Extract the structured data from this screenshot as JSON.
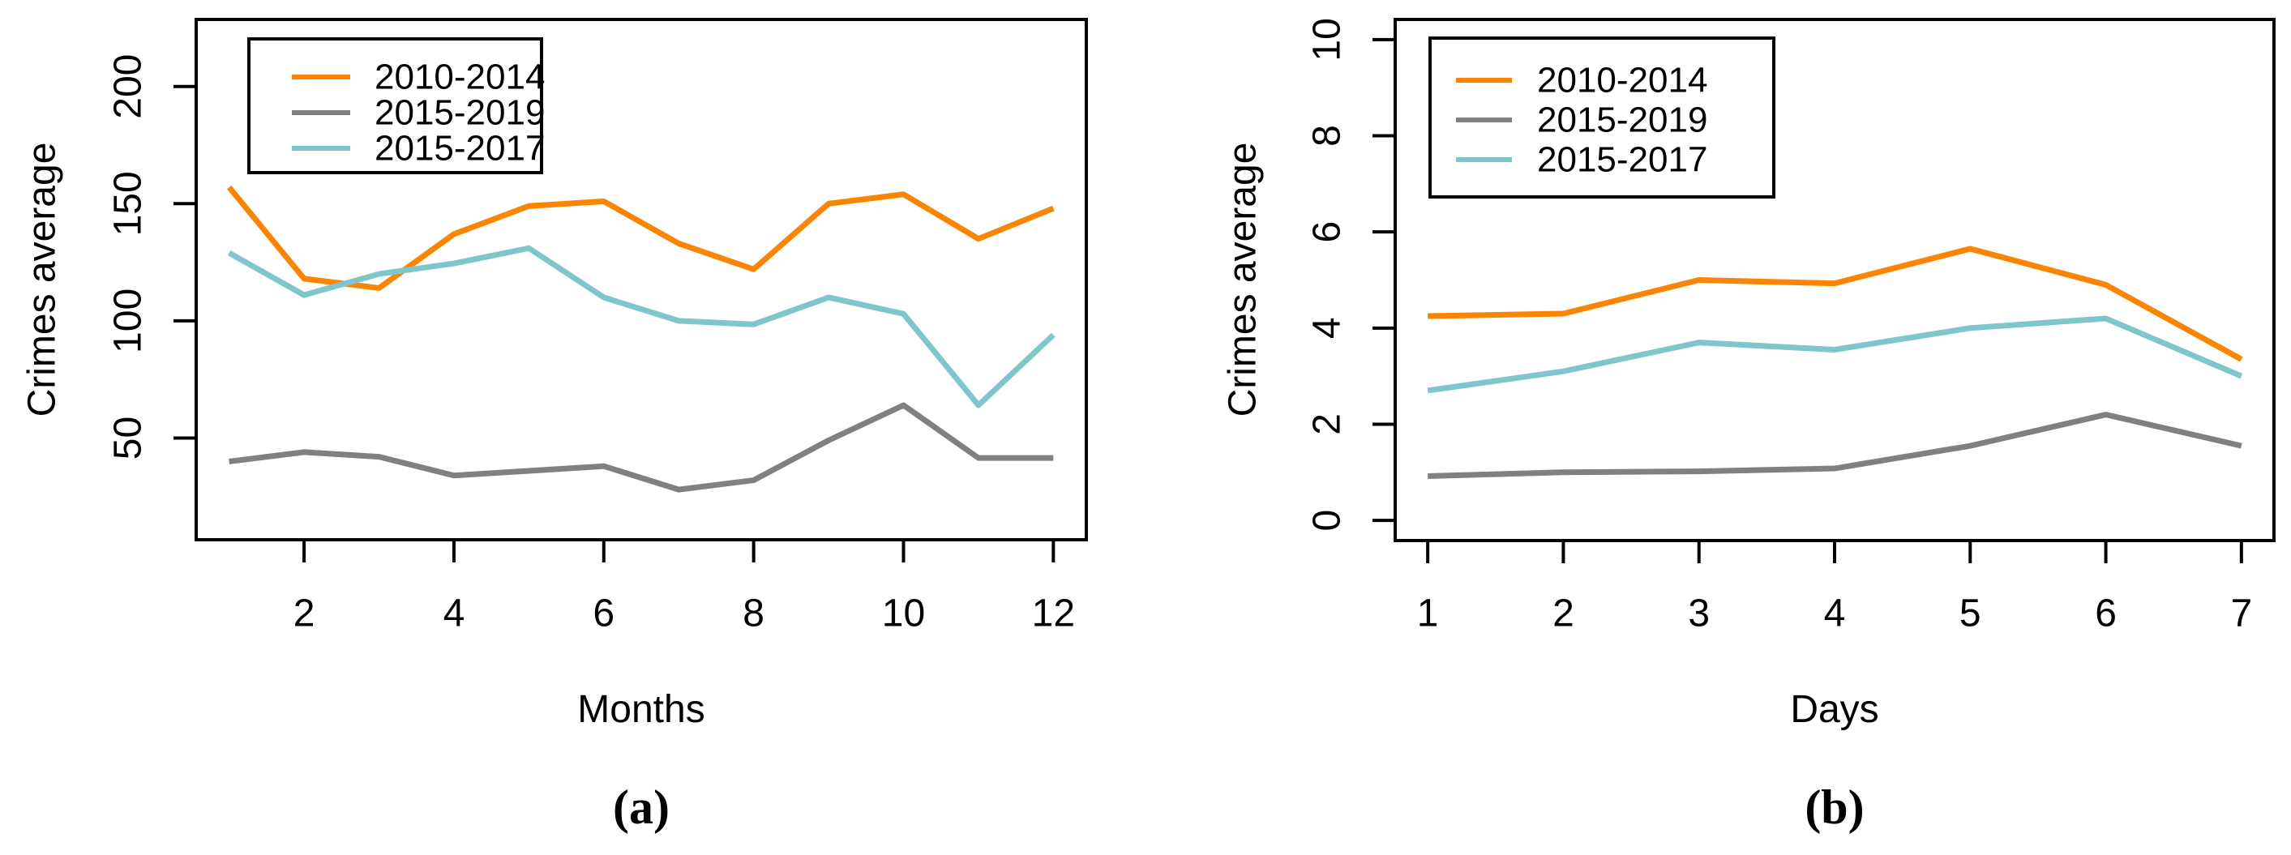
{
  "figure": {
    "background": "#ffffff",
    "panels": [
      {
        "caption": "(a)"
      },
      {
        "caption": "(b)"
      }
    ]
  },
  "chart_data": [
    {
      "type": "line",
      "title": "",
      "xlabel": "Months",
      "ylabel": "Crimes average",
      "x": [
        1,
        2,
        3,
        4,
        5,
        6,
        7,
        8,
        9,
        10,
        11,
        12
      ],
      "xticks": [
        2,
        4,
        6,
        8,
        10,
        12
      ],
      "yticks": [
        50,
        100,
        150,
        200
      ],
      "xlim": [
        0.56,
        12.44
      ],
      "ylim": [
        6.6,
        228.6
      ],
      "grid": false,
      "legend_position": "top-left",
      "legend_entries": [
        "2010-2014",
        "2015-2019",
        "2015-2017"
      ],
      "series": [
        {
          "name": "2010-2014",
          "color": "#F98503",
          "values": [
            157,
            118,
            114,
            137,
            149,
            151,
            133,
            122,
            150,
            154,
            135,
            148
          ]
        },
        {
          "name": "2015-2019",
          "color": "#808080",
          "values": [
            40,
            44,
            42,
            34,
            36,
            38,
            28,
            32,
            49,
            64,
            41.5,
            41.5
          ]
        },
        {
          "name": "2015-2017",
          "color": "#7FC6CB",
          "values": [
            129,
            111,
            120,
            124.5,
            131,
            110,
            100,
            98.5,
            110,
            103,
            64,
            94
          ]
        }
      ]
    },
    {
      "type": "line",
      "title": "",
      "xlabel": "Days",
      "ylabel": "Crimes average",
      "x": [
        1,
        2,
        3,
        4,
        5,
        6,
        7
      ],
      "xticks": [
        1,
        2,
        3,
        4,
        5,
        6,
        7
      ],
      "yticks": [
        0,
        2,
        4,
        6,
        8,
        10
      ],
      "xlim": [
        0.76,
        7.24
      ],
      "ylim": [
        -0.42,
        10.42
      ],
      "grid": false,
      "legend_position": "top-left",
      "legend_entries": [
        "2010-2014",
        "2015-2019",
        "2015-2017"
      ],
      "series": [
        {
          "name": "2010-2014",
          "color": "#F98503",
          "values": [
            4.25,
            4.3,
            5.0,
            4.93,
            5.65,
            4.9,
            3.35
          ]
        },
        {
          "name": "2015-2019",
          "color": "#808080",
          "values": [
            0.92,
            1.0,
            1.02,
            1.08,
            1.55,
            2.2,
            1.55
          ]
        },
        {
          "name": "2015-2017",
          "color": "#7FC6CB",
          "values": [
            2.7,
            3.1,
            3.7,
            3.55,
            4.0,
            4.2,
            3.0
          ]
        }
      ]
    }
  ]
}
